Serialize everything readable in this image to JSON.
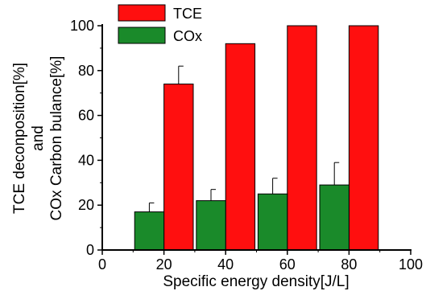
{
  "chart_data": {
    "type": "bar",
    "x": [
      20,
      40,
      60,
      80
    ],
    "xlim": [
      0,
      100
    ],
    "ylim": [
      0,
      100
    ],
    "xticks": [
      0,
      20,
      40,
      60,
      80,
      100
    ],
    "yticks": [
      0,
      20,
      40,
      60,
      80,
      100
    ],
    "xlabel": "Specific energy density[J/L]",
    "ylabel_lines": [
      "TCE deconposition[%]",
      "and",
      "COx Carbon bulance[%]"
    ],
    "grid": false,
    "legend_position": "top-left",
    "series": [
      {
        "name": "TCE",
        "color": "#ff0f0f",
        "x": [
          20,
          40,
          60,
          80
        ],
        "values": [
          74,
          92,
          100,
          100
        ],
        "error": [
          8,
          0,
          0,
          0
        ]
      },
      {
        "name": "COx",
        "color": "#1a8a2a",
        "x": [
          20,
          40,
          60,
          80
        ],
        "values": [
          17,
          22,
          25,
          29
        ],
        "error": [
          4,
          5,
          7,
          10
        ]
      }
    ]
  }
}
